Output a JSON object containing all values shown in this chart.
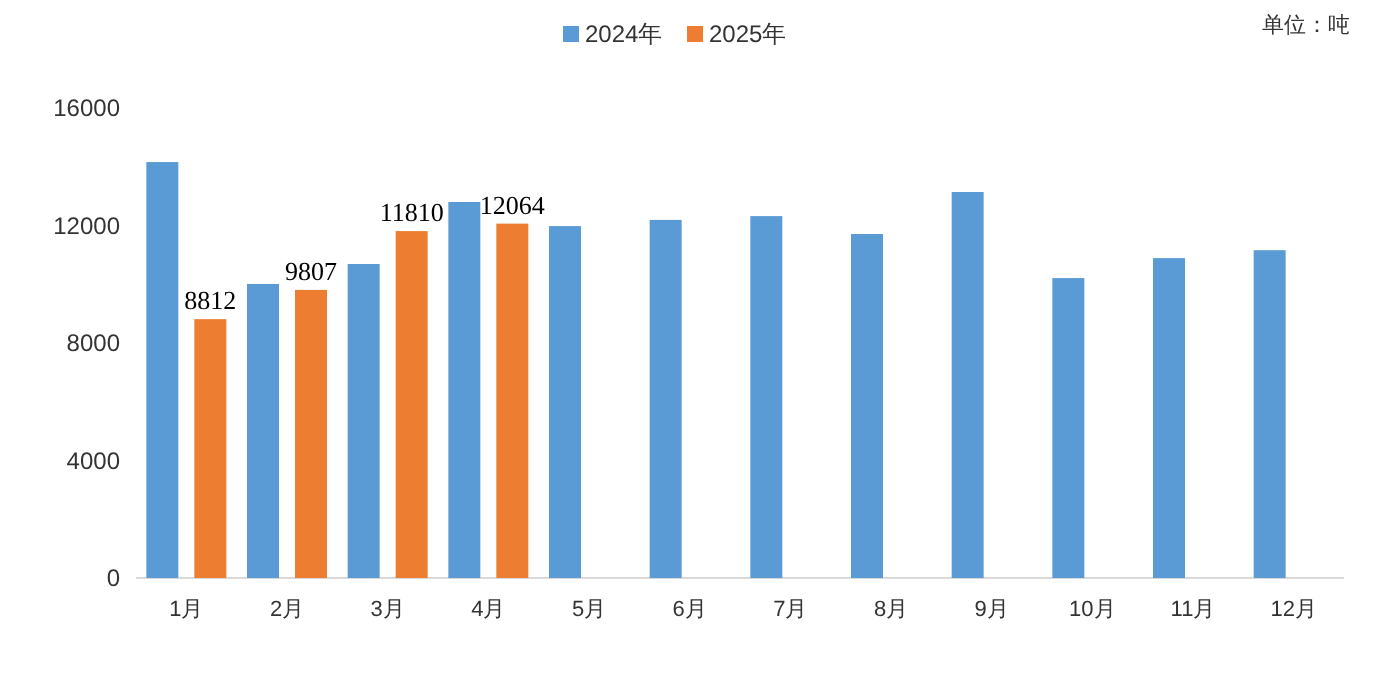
{
  "chart_data": {
    "type": "bar",
    "categories": [
      "1月",
      "2月",
      "3月",
      "4月",
      "5月",
      "6月",
      "7月",
      "8月",
      "9月",
      "10月",
      "11月",
      "12月"
    ],
    "series": [
      {
        "name": "2024年",
        "color": "#5b9bd5",
        "values": [
          14160,
          10010,
          10690,
          12800,
          11980,
          12190,
          12320,
          11710,
          13140,
          10210,
          10890,
          11160
        ]
      },
      {
        "name": "2025年",
        "color": "#ed7d31",
        "values": [
          8812,
          9807,
          11810,
          12064,
          null,
          null,
          null,
          null,
          null,
          null,
          null,
          null
        ],
        "value_labels": [
          "8812",
          "9807",
          "11810",
          "12064",
          null,
          null,
          null,
          null,
          null,
          null,
          null,
          null
        ]
      }
    ],
    "ylim": [
      0,
      16000
    ],
    "yticks": [
      0,
      4000,
      8000,
      12000,
      16000
    ],
    "grid": false,
    "legend": "top",
    "annotations": [
      "单位：吨"
    ]
  }
}
